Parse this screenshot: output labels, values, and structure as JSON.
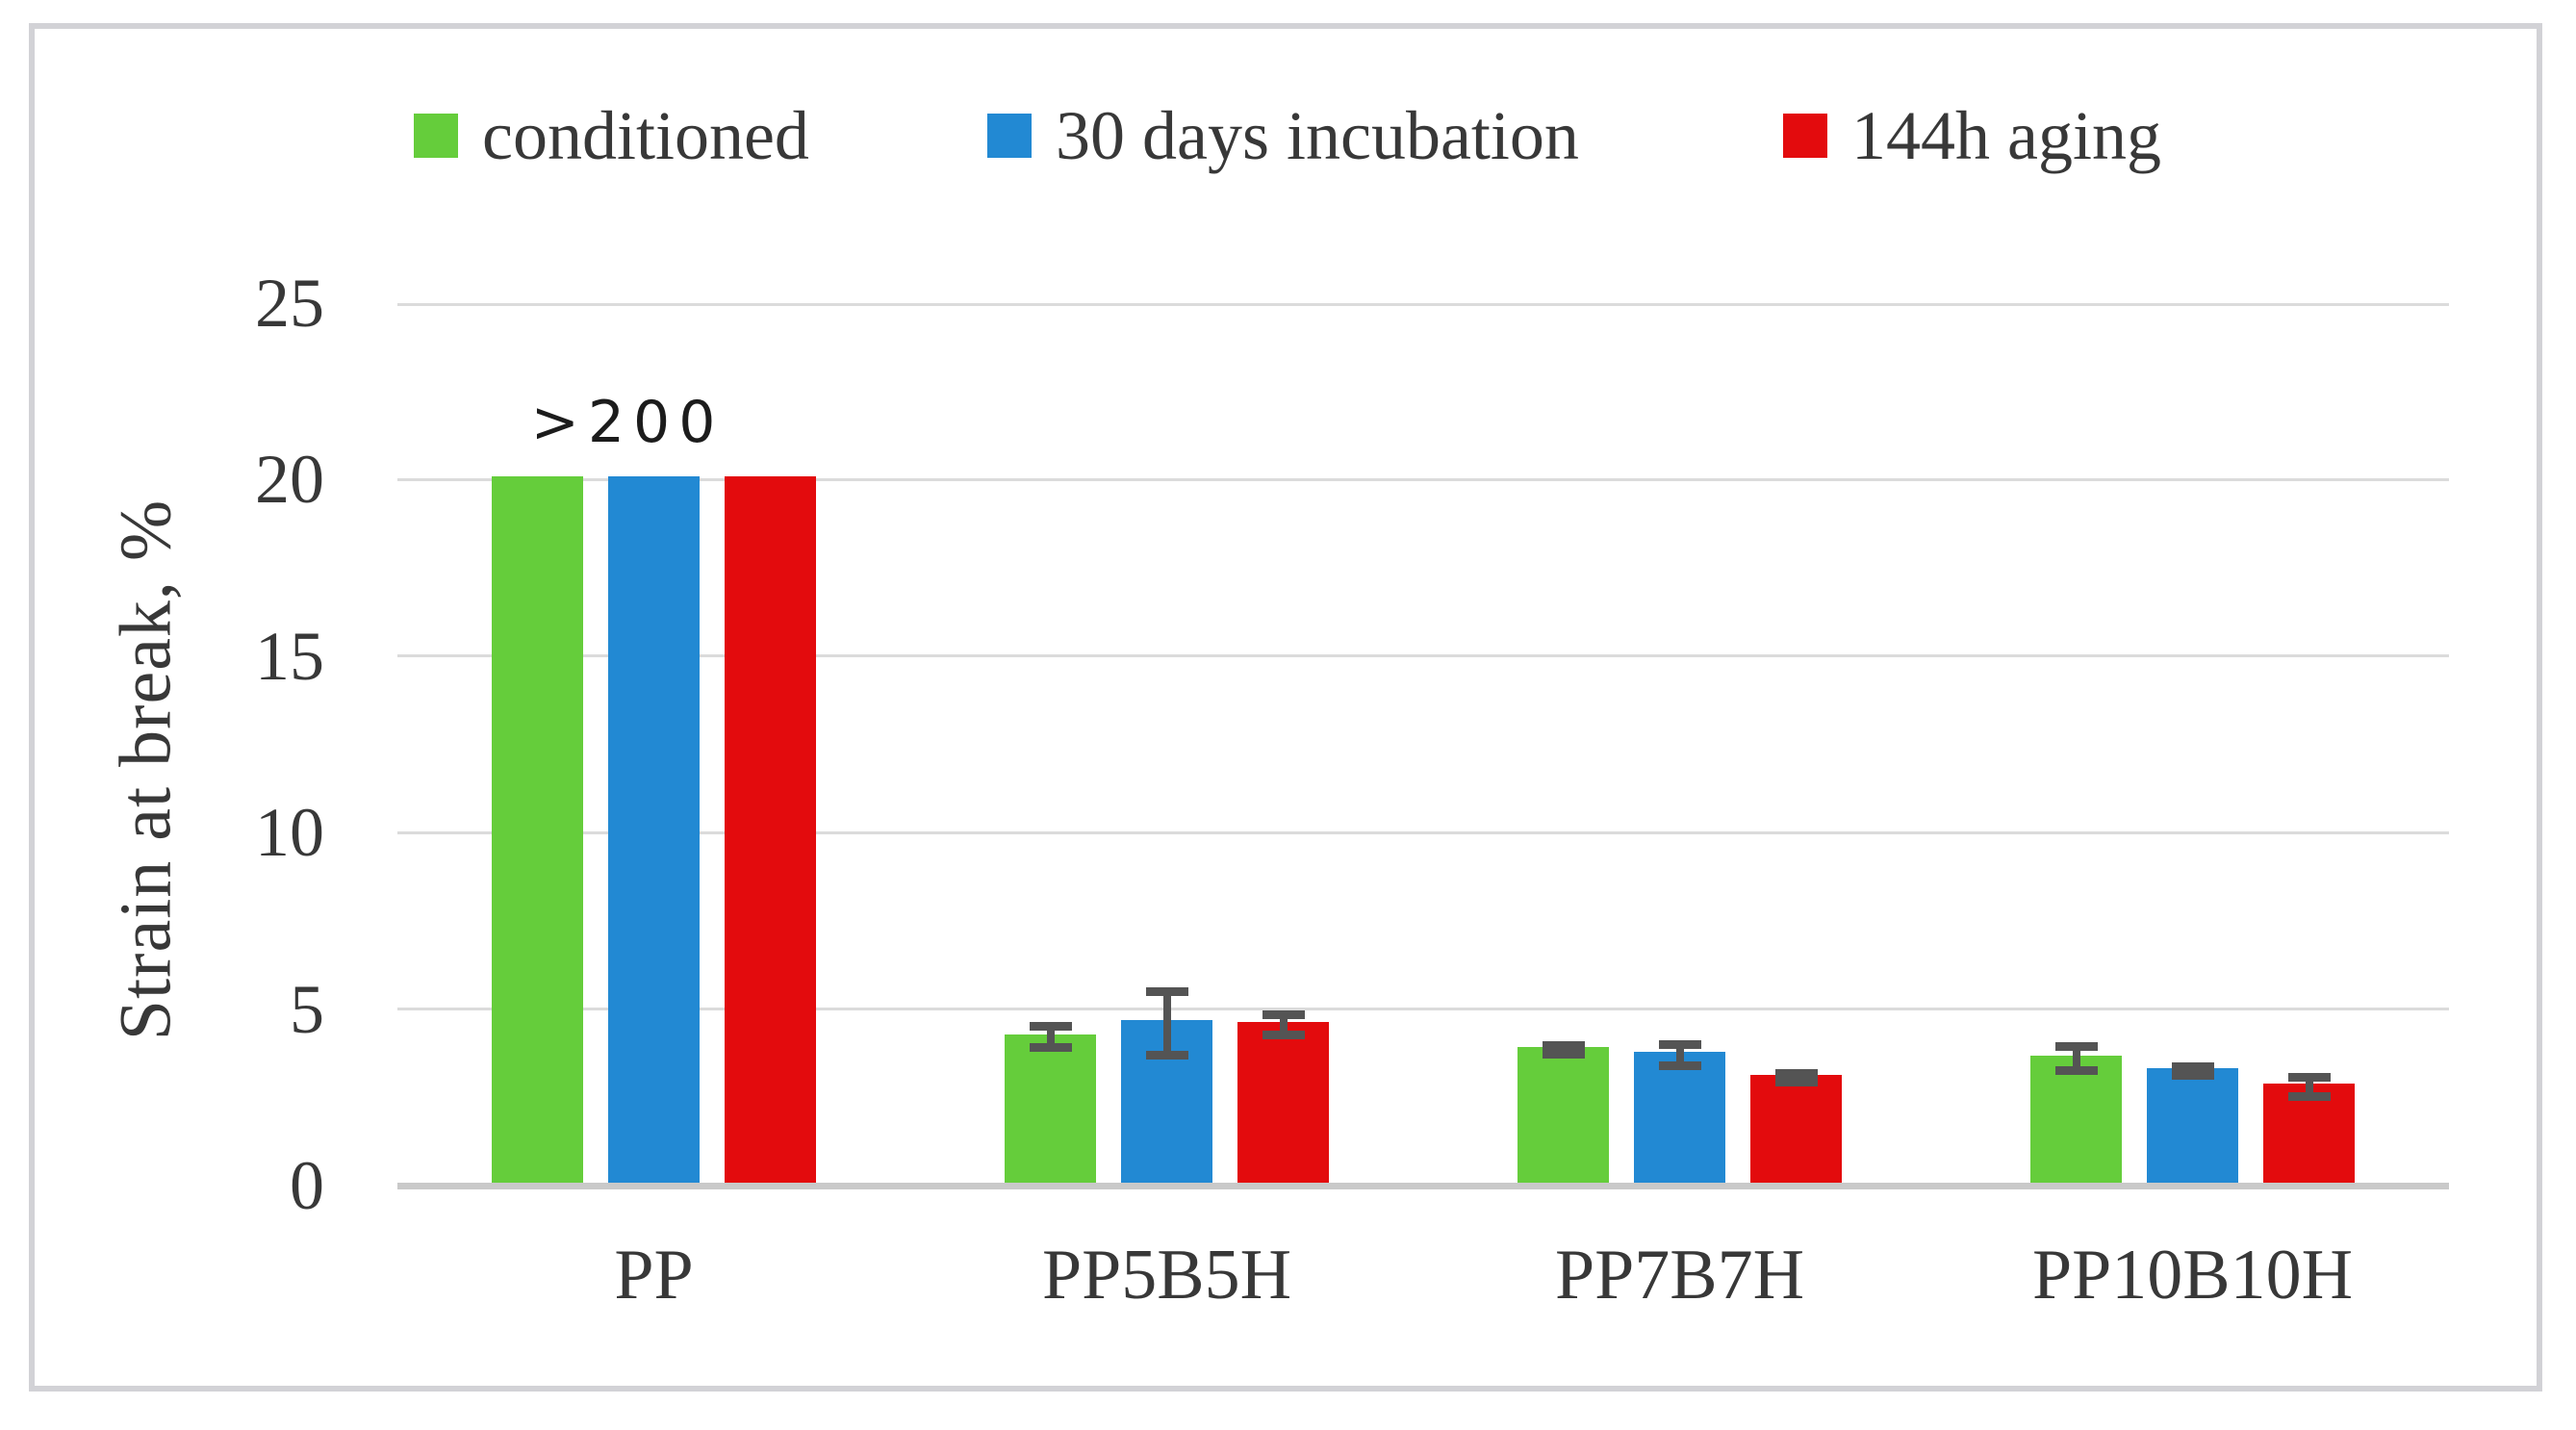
{
  "figure": {
    "background_color": "#ffffff",
    "border_color": "#d2d2d6"
  },
  "colors": {
    "conditioned": "#65CD3B",
    "incubation": "#2289D3",
    "aging": "#E30B0D",
    "error_bar": "#545454",
    "gridline": "#dbdbdb",
    "axis_line": "#c9c9c9",
    "text": "#383838"
  },
  "chart_data": {
    "type": "bar",
    "title": "",
    "ylabel": "Strain at break, %",
    "xlabel": "",
    "categories": [
      "PP",
      "PP5B5H",
      "PP7B7H",
      "PP10B10H"
    ],
    "series": [
      {
        "name": "conditioned",
        "color": "#65CD3B",
        "values": [
          20,
          4.2,
          3.85,
          3.6
        ],
        "errors": [
          0,
          0.3,
          0.12,
          0.33
        ]
      },
      {
        "name": "30 days incubation",
        "color": "#2289D3",
        "values": [
          20,
          4.6,
          3.7,
          3.25
        ],
        "errors": [
          0,
          0.9,
          0.3,
          0.12
        ]
      },
      {
        "name": "144h aging",
        "color": "#E30B0D",
        "values": [
          20,
          4.55,
          3.05,
          2.8
        ],
        "errors": [
          0,
          0.28,
          0.12,
          0.27
        ]
      }
    ],
    "annotation": {
      "text": ">200",
      "category": "PP"
    },
    "bars_clipped_at": 20,
    "ylim": [
      0,
      25
    ],
    "yticks": [
      0,
      5,
      10,
      15,
      20,
      25
    ],
    "grid": true,
    "legend_position": "top"
  }
}
